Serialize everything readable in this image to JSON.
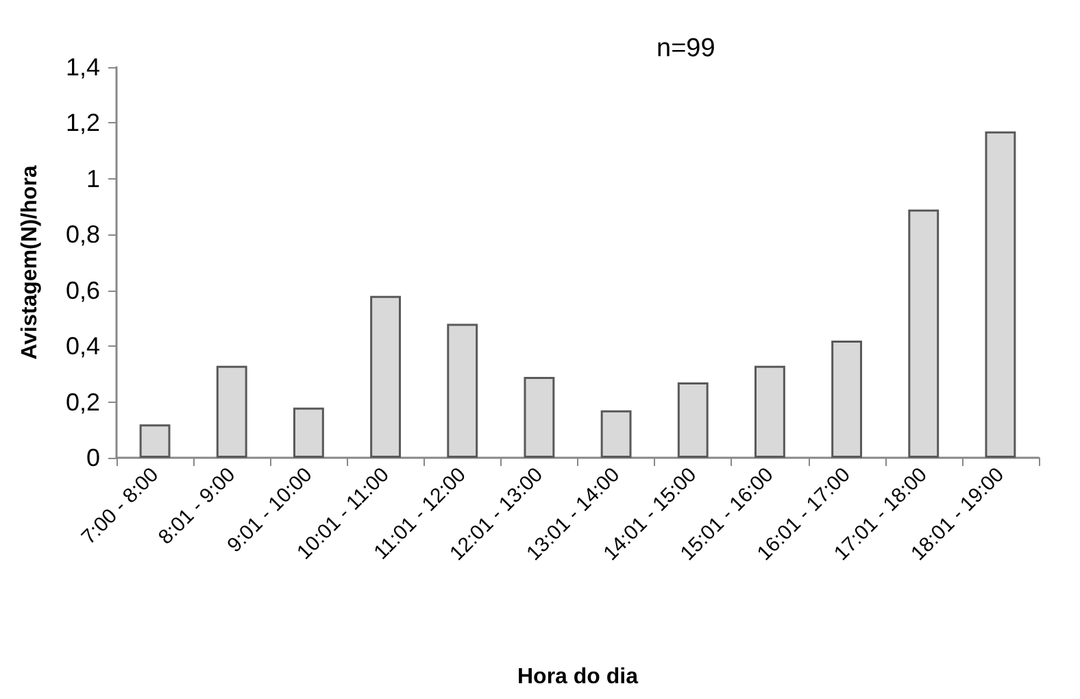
{
  "chart_data": {
    "type": "bar",
    "xlabel": "Hora do dia",
    "ylabel": "Avistagem(N)/hora",
    "annotations": [
      "n=99"
    ],
    "categories": [
      "7:00 - 8:00",
      "8:01 - 9:00",
      "9:01 - 10:00",
      "10:01 - 11:00",
      "11:01 - 12:00",
      "12:01 - 13:00",
      "13:01 - 14:00",
      "14:01 - 15:00",
      "15:01 - 16:00",
      "16:01 - 17:00",
      "17:01 - 18:00",
      "18:01 - 19:00"
    ],
    "values": [
      0.12,
      0.33,
      0.18,
      0.58,
      0.48,
      0.29,
      0.17,
      0.27,
      0.33,
      0.42,
      0.89,
      1.17
    ],
    "color": "#d9d9d9",
    "ylim": [
      0,
      1.4
    ],
    "yticks": [
      0,
      {
        "value": 0.2,
        "label": "0,2"
      },
      {
        "value": 0.4,
        "label": "0,4"
      },
      {
        "value": 0.6,
        "label": "0,6"
      },
      {
        "value": 0.8,
        "label": "0,8"
      },
      1,
      {
        "value": 1.2,
        "label": "1,2"
      },
      {
        "value": 1.4,
        "label": "1,4"
      }
    ],
    "grid": false
  }
}
